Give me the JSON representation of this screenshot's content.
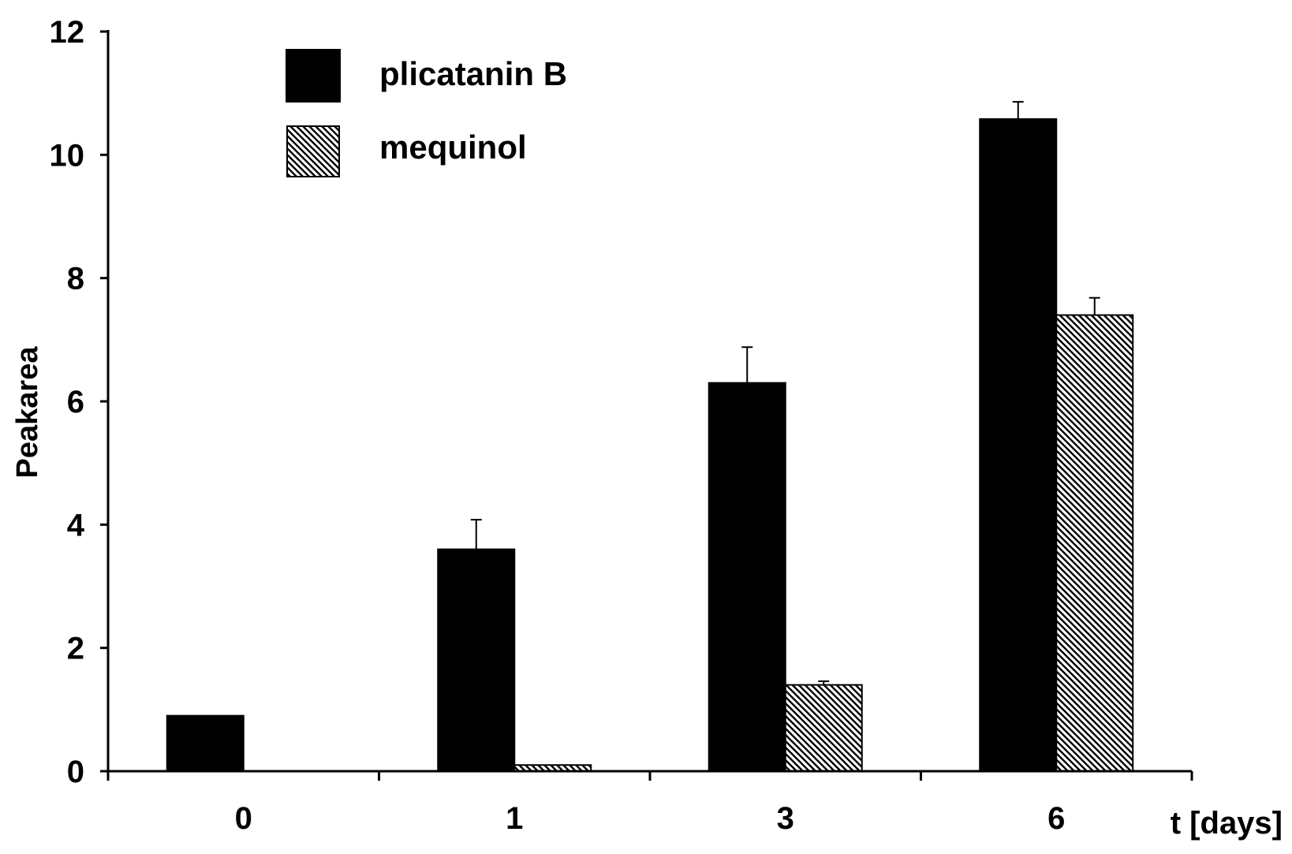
{
  "chart_data": {
    "type": "bar",
    "ylabel": "Peakarea",
    "xlabel": "t [days]",
    "categories": [
      "0",
      "1",
      "3",
      "6"
    ],
    "ylim": [
      0,
      12
    ],
    "yticks": [
      0,
      2,
      4,
      6,
      8,
      10,
      12
    ],
    "grid": false,
    "legend_position": "top-left",
    "series": [
      {
        "name": "plicatanin B",
        "fill": "solid",
        "color": "#000000",
        "values": [
          0.9,
          3.6,
          6.3,
          10.58
        ],
        "errors": [
          0,
          0.48,
          0.58,
          0.28
        ]
      },
      {
        "name": "mequinol",
        "fill": "hatched",
        "color": "#000000",
        "values": [
          0,
          0.1,
          1.4,
          7.4
        ],
        "errors": [
          0,
          0,
          0.06,
          0.28
        ]
      }
    ]
  }
}
